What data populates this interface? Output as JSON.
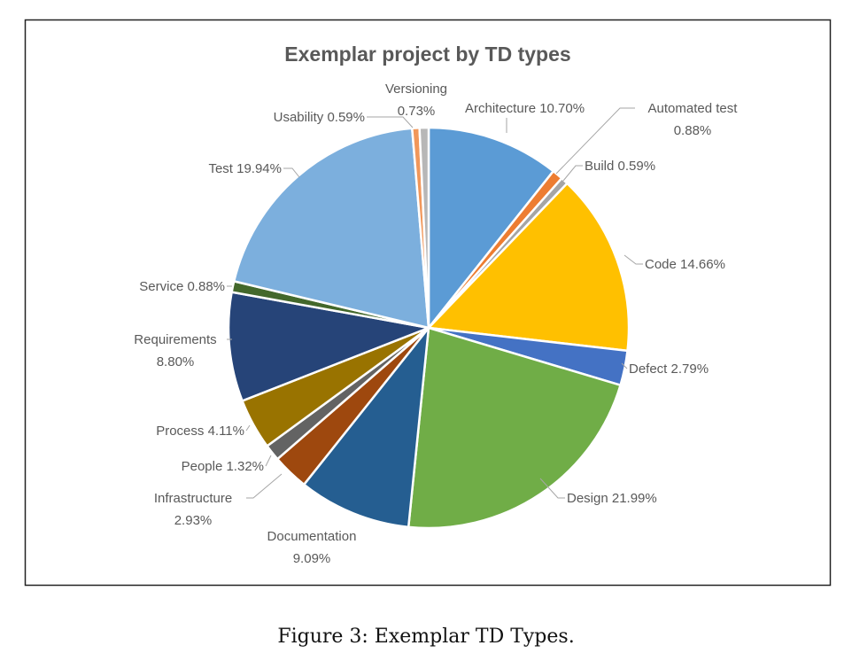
{
  "figure": {
    "caption": "Figure 3: Exemplar TD Types."
  },
  "chart_data": {
    "type": "pie",
    "title": "Exemplar project by TD types",
    "start_angle": "12 o'clock, clockwise",
    "slices": [
      {
        "name": "Architecture",
        "value": 10.7,
        "label": "Architecture 10.70%",
        "color": "#5b9bd5"
      },
      {
        "name": "Automated test",
        "value": 0.88,
        "label": [
          "Automated test",
          "0.88%"
        ],
        "color": "#ed7d31"
      },
      {
        "name": "Build",
        "value": 0.59,
        "label": "Build 0.59%",
        "color": "#a5a5a5"
      },
      {
        "name": "Code",
        "value": 14.66,
        "label": "Code 14.66%",
        "color": "#ffc000"
      },
      {
        "name": "Defect",
        "value": 2.79,
        "label": "Defect 2.79%",
        "color": "#4472c4"
      },
      {
        "name": "Design",
        "value": 21.99,
        "label": "Design 21.99%",
        "color": "#70ad47"
      },
      {
        "name": "Documentation",
        "value": 9.09,
        "label": [
          "Documentation",
          "9.09%"
        ],
        "color": "#255e91"
      },
      {
        "name": "Infrastructure",
        "value": 2.93,
        "label": [
          "Infrastructure",
          "2.93%"
        ],
        "color": "#9e480e"
      },
      {
        "name": "People",
        "value": 1.32,
        "label": "People 1.32%",
        "color": "#636363"
      },
      {
        "name": "Process",
        "value": 4.11,
        "label": "Process 4.11%",
        "color": "#997300"
      },
      {
        "name": "Requirements",
        "value": 8.8,
        "label": [
          "Requirements",
          "8.80%"
        ],
        "color": "#264478"
      },
      {
        "name": "Service",
        "value": 0.88,
        "label": "Service 0.88%",
        "color": "#43682b"
      },
      {
        "name": "Test",
        "value": 19.94,
        "label": "Test 19.94%",
        "color": "#7cafdd"
      },
      {
        "name": "Usability",
        "value": 0.59,
        "label": "Usability 0.59%",
        "color": "#f1975a"
      },
      {
        "name": "Versioning",
        "value": 0.73,
        "label": [
          "Versioning",
          "0.73%"
        ],
        "color": "#b7b7b7"
      }
    ]
  }
}
